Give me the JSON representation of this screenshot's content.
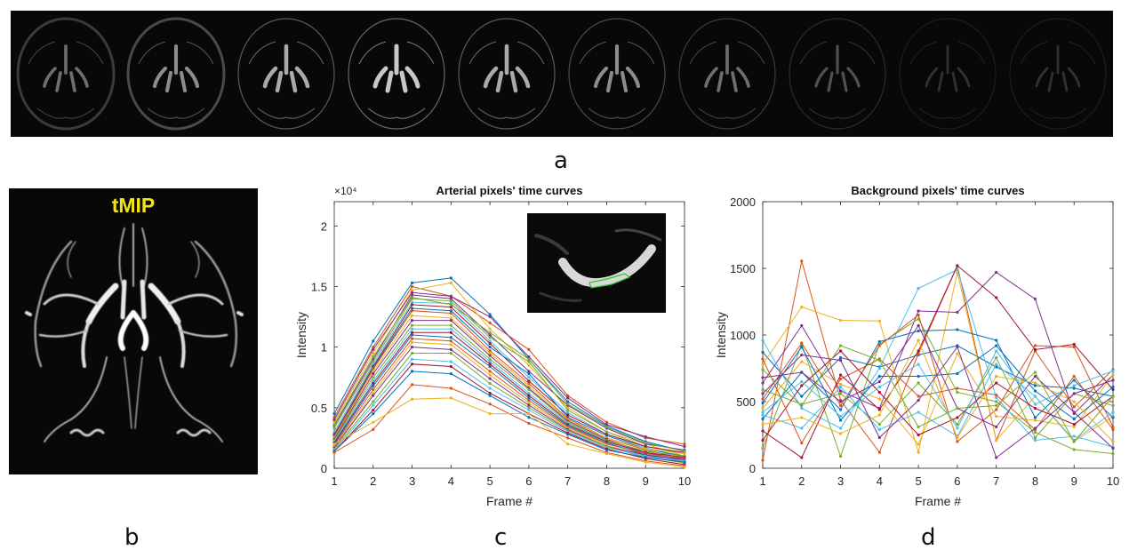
{
  "panel_labels": {
    "a": "a",
    "b": "b",
    "c": "c",
    "d": "d"
  },
  "tmip_label": "tMIP",
  "colors": {
    "series": [
      "#0072BD",
      "#D95319",
      "#EDB120",
      "#7E2F8E",
      "#77AC30",
      "#4DBEEE",
      "#A2142F"
    ],
    "tmip_label": "#f2e516",
    "inset_roi": "#22cc22"
  },
  "chart_data": [
    {
      "id": "arterial",
      "type": "line",
      "title": "Arterial pixels' time curves",
      "xlabel": "Frame #",
      "ylabel": "Intensity",
      "exponent_label": "×10⁴",
      "x": [
        1,
        2,
        3,
        4,
        5,
        6,
        7,
        8,
        9,
        10
      ],
      "xlim": [
        1,
        10
      ],
      "ylim": [
        0,
        2.2
      ],
      "yticks": [
        0,
        0.5,
        1,
        1.5,
        2
      ],
      "ytick_labels": [
        "0",
        "0.5",
        "1",
        "1.5",
        "2"
      ],
      "xtick_labels": [
        "1",
        "2",
        "3",
        "4",
        "5",
        "6",
        "7",
        "8",
        "9",
        "10"
      ],
      "units_scale": 10000,
      "series": [
        {
          "values": [
            0.45,
            1.05,
            1.53,
            1.57,
            1.27,
            0.9,
            0.55,
            0.35,
            0.22,
            0.14
          ]
        },
        {
          "values": [
            0.42,
            1.0,
            1.5,
            1.42,
            1.2,
            0.98,
            0.6,
            0.38,
            0.25,
            0.2
          ]
        },
        {
          "values": [
            0.38,
            0.95,
            1.47,
            1.53,
            1.15,
            0.85,
            0.5,
            0.3,
            0.2,
            0.1
          ]
        },
        {
          "values": [
            0.35,
            0.9,
            1.43,
            1.4,
            1.1,
            0.8,
            0.52,
            0.33,
            0.2,
            0.15
          ]
        },
        {
          "values": [
            0.33,
            0.88,
            1.4,
            1.38,
            1.08,
            0.88,
            0.48,
            0.3,
            0.18,
            0.12
          ]
        },
        {
          "values": [
            0.3,
            0.86,
            1.37,
            1.36,
            1.05,
            0.75,
            0.46,
            0.28,
            0.17,
            0.09
          ]
        },
        {
          "values": [
            0.28,
            0.84,
            1.35,
            1.33,
            1.03,
            0.72,
            0.44,
            0.28,
            0.18,
            0.13
          ]
        },
        {
          "values": [
            0.27,
            0.83,
            1.32,
            1.3,
            1.0,
            0.78,
            0.42,
            0.27,
            0.16,
            0.1
          ]
        },
        {
          "values": [
            0.26,
            0.82,
            1.3,
            1.28,
            0.97,
            0.7,
            0.41,
            0.25,
            0.15,
            0.08
          ]
        },
        {
          "values": [
            0.25,
            0.8,
            1.26,
            1.24,
            0.95,
            0.68,
            0.4,
            0.25,
            0.16,
            0.12
          ]
        },
        {
          "values": [
            0.24,
            0.78,
            1.22,
            1.22,
            0.93,
            0.66,
            0.39,
            0.24,
            0.13,
            0.07
          ]
        },
        {
          "values": [
            0.23,
            0.75,
            1.18,
            1.18,
            0.9,
            0.65,
            0.38,
            0.23,
            0.14,
            0.1
          ]
        },
        {
          "values": [
            0.22,
            0.72,
            1.15,
            1.15,
            0.88,
            0.62,
            0.37,
            0.22,
            0.12,
            0.06
          ]
        },
        {
          "values": [
            0.21,
            0.7,
            1.12,
            1.12,
            0.86,
            0.6,
            0.36,
            0.22,
            0.13,
            0.09
          ]
        },
        {
          "values": [
            0.2,
            0.68,
            1.1,
            1.08,
            0.84,
            0.58,
            0.35,
            0.21,
            0.11,
            0.05
          ]
        },
        {
          "values": [
            0.19,
            0.65,
            1.07,
            1.05,
            0.8,
            0.56,
            0.34,
            0.2,
            0.12,
            0.08
          ]
        },
        {
          "values": [
            0.18,
            0.62,
            1.04,
            1.02,
            0.77,
            0.54,
            0.33,
            0.19,
            0.1,
            0.04
          ]
        },
        {
          "values": [
            0.17,
            0.6,
            1.0,
            0.98,
            0.74,
            0.52,
            0.32,
            0.18,
            0.11,
            0.07
          ]
        },
        {
          "values": [
            0.16,
            0.55,
            0.95,
            0.95,
            0.7,
            0.5,
            0.31,
            0.18,
            0.09,
            0.05
          ]
        },
        {
          "values": [
            0.15,
            0.52,
            0.9,
            0.88,
            0.66,
            0.48,
            0.3,
            0.17,
            0.1,
            0.06
          ]
        },
        {
          "values": [
            0.14,
            0.48,
            0.86,
            0.84,
            0.62,
            0.45,
            0.29,
            0.16,
            0.08,
            0.03
          ]
        },
        {
          "values": [
            0.14,
            0.45,
            0.8,
            0.78,
            0.6,
            0.42,
            0.28,
            0.15,
            0.09,
            0.05
          ]
        },
        {
          "values": [
            0.13,
            0.32,
            0.69,
            0.66,
            0.53,
            0.37,
            0.25,
            0.13,
            0.06,
            0.02
          ]
        },
        {
          "values": [
            0.2,
            0.38,
            0.57,
            0.58,
            0.45,
            0.45,
            0.2,
            0.12,
            0.05,
            0.01
          ]
        },
        {
          "values": [
            0.4,
            0.98,
            1.45,
            1.42,
            1.25,
            0.92,
            0.58,
            0.36,
            0.26,
            0.18
          ]
        },
        {
          "values": [
            0.36,
            0.92,
            1.41,
            1.35,
            1.12,
            0.9,
            0.53,
            0.34,
            0.21,
            0.14
          ]
        }
      ]
    },
    {
      "id": "background",
      "type": "line",
      "title": "Background pixels' time curves",
      "xlabel": "Frame #",
      "ylabel": "Intensity",
      "x": [
        1,
        2,
        3,
        4,
        5,
        6,
        7,
        8,
        9,
        10
      ],
      "xlim": [
        1,
        10
      ],
      "ylim": [
        0,
        2000
      ],
      "yticks": [
        0,
        500,
        1000,
        1500,
        2000
      ],
      "ytick_labels": [
        "0",
        "500",
        "1000",
        "1500",
        "2000"
      ],
      "xtick_labels": [
        "1",
        "2",
        "3",
        "4",
        "5",
        "6",
        "7",
        "8",
        "9",
        "10"
      ],
      "series": [
        {
          "values": [
            870,
            540,
            830,
            760,
            850,
            920,
            760,
            620,
            600,
            540
          ]
        },
        {
          "values": [
            60,
            1555,
            510,
            120,
            860,
            1520,
            210,
            880,
            460,
            740
          ]
        },
        {
          "values": [
            780,
            1210,
            1110,
            1105,
            120,
            1470,
            210,
            540,
            200,
            390
          ]
        },
        {
          "values": [
            640,
            1070,
            580,
            450,
            1180,
            1170,
            1470,
            1270,
            410,
            700
          ]
        },
        {
          "values": [
            150,
            930,
            90,
            930,
            1120,
            570,
            500,
            270,
            140,
            110
          ]
        },
        {
          "values": [
            960,
            450,
            300,
            750,
            1350,
            1490,
            530,
            210,
            240,
            160
          ]
        },
        {
          "values": [
            280,
            80,
            700,
            440,
            880,
            1520,
            1280,
            890,
            930,
            590
          ]
        },
        {
          "values": [
            370,
            720,
            440,
            950,
            1030,
            1040,
            960,
            380,
            660,
            380
          ]
        },
        {
          "values": [
            520,
            940,
            470,
            920,
            1150,
            200,
            440,
            920,
            910,
            310
          ]
        },
        {
          "values": [
            450,
            800,
            630,
            520,
            180,
            860,
            390,
            360,
            310,
            700
          ]
        },
        {
          "values": [
            680,
            720,
            500,
            650,
            1070,
            450,
            310,
            690,
            420,
            150
          ]
        },
        {
          "values": [
            590,
            480,
            560,
            330,
            640,
            330,
            830,
            230,
            560,
            470
          ]
        },
        {
          "values": [
            400,
            300,
            610,
            290,
            420,
            240,
            780,
            540,
            210,
            420
          ]
        },
        {
          "values": [
            210,
            620,
            880,
            570,
            250,
            380,
            640,
            450,
            330,
            540
          ]
        },
        {
          "values": [
            490,
            910,
            360,
            690,
            690,
            710,
            920,
            580,
            370,
            610
          ]
        },
        {
          "values": [
            820,
            190,
            670,
            820,
            540,
            600,
            550,
            290,
            690,
            290
          ]
        },
        {
          "values": [
            330,
            380,
            260,
            400,
            960,
            230,
            690,
            640,
            500,
            200
          ]
        },
        {
          "values": [
            560,
            850,
            810,
            230,
            510,
            910,
            80,
            300,
            560,
            660
          ]
        },
        {
          "values": [
            740,
            470,
            920,
            810,
            310,
            450,
            470,
            720,
            200,
            540
          ]
        },
        {
          "values": [
            420,
            650,
            390,
            610,
            780,
            300,
            880,
            480,
            620,
            730
          ]
        }
      ]
    }
  ]
}
